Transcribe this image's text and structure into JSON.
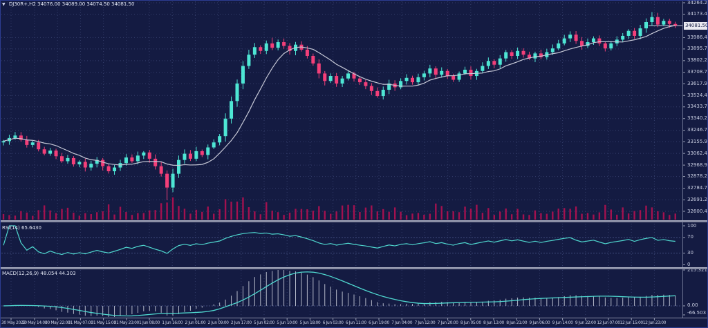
{
  "window": {
    "dropdown_glyph": "▼",
    "title_symbol": "DJ30R+,H2",
    "ohlc": "34076.00 34089.00 34074.50 34081.50"
  },
  "colors": {
    "bg": "#141b42",
    "grid": "#343e6b",
    "axis_text": "#c9cee2",
    "bull": "#4ee6d4",
    "bear": "#f33f79",
    "ma": "#c6c8d6",
    "volume": "#a3114f",
    "indicator": "#4fd8cf",
    "hist": "#b4b9c9",
    "frame": "#2d3c92",
    "price_tag_bg": "#e9eaf1",
    "price_tag_text": "#141b42",
    "bid_line": "#cdd0dd"
  },
  "price_axis": {
    "labels": [
      "34264.20",
      "34173.45",
      "33986.45",
      "33895.70",
      "33802.20",
      "33708.70",
      "33617.95",
      "33524.45",
      "33433.70",
      "33340.20",
      "33246.70",
      "33155.95",
      "33062.45",
      "32968.95",
      "32878.20",
      "32784.70",
      "32691.20",
      "32600.45"
    ],
    "current": "34081.50"
  },
  "rsi": {
    "name": "RSI(14)",
    "value": "65.6430",
    "levels": [
      "100",
      "70",
      "30",
      "0"
    ],
    "level_values": [
      100,
      70,
      30,
      0
    ],
    "dashed_levels": [
      70,
      30
    ]
  },
  "macd": {
    "name": "MACD(12,26,9)",
    "value": "48.054 44.303",
    "axis_labels": [
      "215.321",
      "0.00",
      "-66.503"
    ],
    "axis_values": [
      215.321,
      0,
      -66.503
    ]
  },
  "time_axis": {
    "labels": [
      "30 May 2023",
      "30 May 14:00",
      "30 May 22:00",
      "31 May 07:00",
      "31 May 15:00",
      "31 May 23:00",
      "1 Jun 08:00",
      "1 Jun 16:00",
      "2 Jun 01:00",
      "2 Jun 09:00",
      "2 Jun 17:00",
      "5 Jun 02:00",
      "5 Jun 10:00",
      "5 Jun 18:00",
      "6 Jun 03:00",
      "6 Jun 11:00",
      "6 Jun 19:00",
      "7 Jun 04:00",
      "7 Jun 12:00",
      "7 Jun 20:00",
      "8 Jun 05:00",
      "8 Jun 13:00",
      "8 Jun 21:00",
      "9 Jun 06:00",
      "9 Jun 14:00",
      "9 Jun 22:00",
      "12 Jun 07:00",
      "12 Jun 15:00",
      "12 Jun 23:00"
    ]
  },
  "chart_data": {
    "type": "candlestick",
    "title": "DJ30R+,H2",
    "symbol": "DJ30R+",
    "timeframe": "H2",
    "open_current": 34076.0,
    "high_current": 34089.0,
    "low_current": 34074.5,
    "close_current": 34081.5,
    "ylim": [
      32600.45,
      34264.2
    ],
    "x_range": [
      "30 May 2023 00:00",
      "12 Jun 2023 23:00"
    ],
    "indicators": [
      "Moving Average (silver, overlay)",
      "Volumes (crimson, overlay bottom)",
      "RSI(14) = 65.6430",
      "MACD(12,26,9) = 48.054 / 44.303"
    ],
    "first_open": 33150,
    "closes": [
      33160,
      33185,
      33205,
      33170,
      33130,
      33150,
      33095,
      33060,
      33085,
      33040,
      33000,
      33025,
      32975,
      32995,
      32950,
      32980,
      33010,
      32960,
      32920,
      32950,
      32985,
      33030,
      33000,
      33045,
      33070,
      33020,
      32960,
      32900,
      32790,
      32900,
      33010,
      33060,
      33020,
      33080,
      33050,
      33110,
      33150,
      33200,
      33340,
      33480,
      33620,
      33760,
      33850,
      33910,
      33880,
      33940,
      33905,
      33950,
      33920,
      33880,
      33930,
      33890,
      33840,
      33780,
      33700,
      33640,
      33680,
      33620,
      33660,
      33700,
      33660,
      33630,
      33600,
      33560,
      33520,
      33570,
      33620,
      33590,
      33640,
      33665,
      33630,
      33670,
      33700,
      33740,
      33690,
      33720,
      33680,
      33650,
      33700,
      33730,
      33680,
      33720,
      33760,
      33800,
      33770,
      33820,
      33870,
      33840,
      33880,
      33850,
      33820,
      33860,
      33830,
      33870,
      33900,
      33940,
      33980,
      34010,
      33960,
      33920,
      33950,
      33980,
      33940,
      33900,
      33940,
      33970,
      34000,
      34040,
      34000,
      34060,
      34110,
      34150,
      34090,
      34120,
      34095,
      34081.5
    ],
    "high_overrides": {
      "46": 33985,
      "111": 34190
    },
    "low_overrides": {
      "28": 32690
    },
    "rsi_axis": [
      100,
      70,
      30,
      0
    ],
    "macd_axis": [
      215.321,
      0,
      -66.503
    ]
  }
}
